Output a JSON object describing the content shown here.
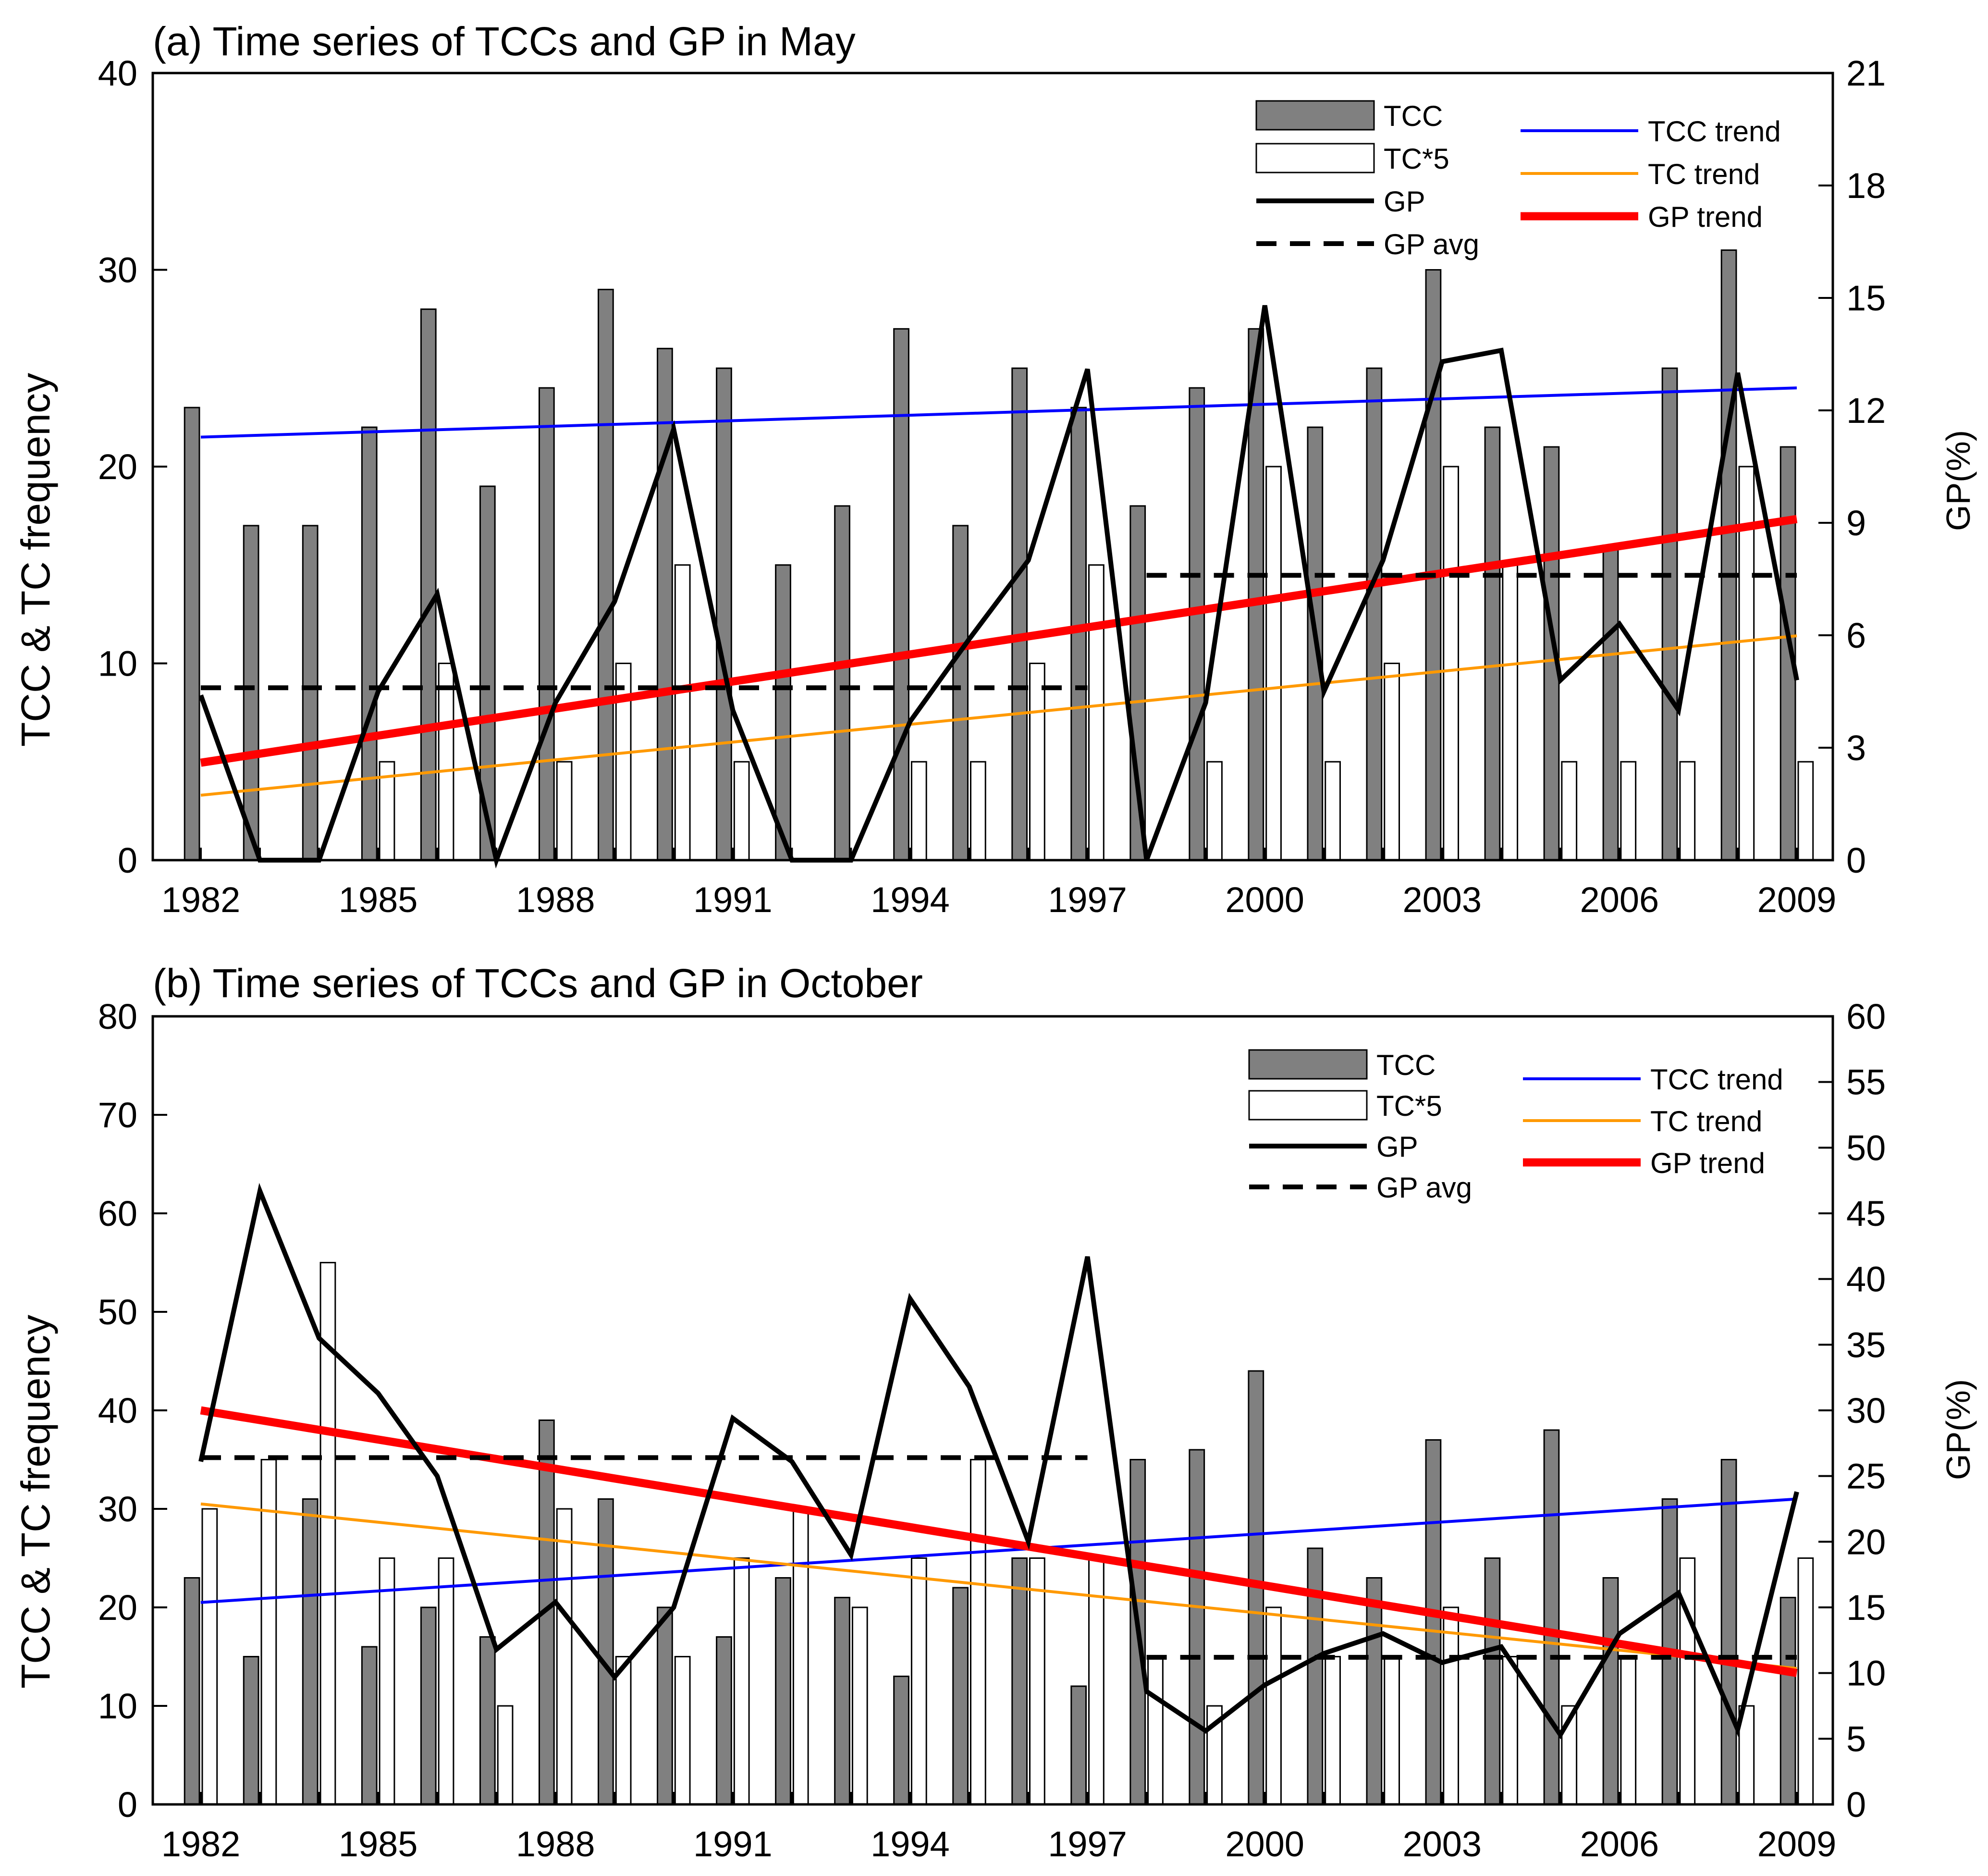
{
  "chart_data": [
    {
      "type": "bar",
      "title": "(a) Time series of TCCs and GP in May",
      "ylabel": "TCC & TC frequency",
      "y2label": "GP(%)",
      "xlabel": "",
      "ylim": [
        0,
        40
      ],
      "y2lim": [
        0,
        21
      ],
      "yticks": [
        0,
        10,
        20,
        30,
        40
      ],
      "y2ticks": [
        0,
        3,
        6,
        9,
        12,
        15,
        18,
        21
      ],
      "xtick_labels": [
        "1982",
        "1985",
        "1988",
        "1991",
        "1994",
        "1997",
        "2000",
        "2003",
        "2006",
        "2009"
      ],
      "categories": [
        "1982",
        "1983",
        "1984",
        "1985",
        "1986",
        "1987",
        "1988",
        "1989",
        "1990",
        "1991",
        "1992",
        "1993",
        "1994",
        "1995",
        "1996",
        "1997",
        "1998",
        "1999",
        "2000",
        "2001",
        "2002",
        "2003",
        "2004",
        "2005",
        "2006",
        "2007",
        "2008",
        "2009"
      ],
      "legend_placement": "top-right",
      "series": [
        {
          "name": "TCC",
          "kind": "bar",
          "axis": "left",
          "color": "#808080",
          "values": [
            23,
            17,
            17,
            22,
            28,
            19,
            24,
            29,
            26,
            25,
            15,
            18,
            27,
            17,
            25,
            23,
            18,
            24,
            27,
            22,
            25,
            30,
            22,
            21,
            16,
            25,
            31,
            21
          ]
        },
        {
          "name": "TC*5",
          "kind": "bar",
          "axis": "left",
          "color": "#ffffff",
          "values": [
            0,
            0,
            0,
            5,
            10,
            0,
            5,
            10,
            15,
            5,
            0,
            0,
            5,
            5,
            10,
            15,
            0,
            5,
            20,
            5,
            10,
            20,
            15,
            5,
            5,
            5,
            20,
            5
          ]
        },
        {
          "name": "GP",
          "kind": "line",
          "axis": "right",
          "color": "#000000",
          "dash": "solid",
          "values": [
            4.4,
            0,
            0,
            4.5,
            7.1,
            0,
            4.2,
            6.9,
            11.5,
            4.0,
            0,
            0,
            3.7,
            5.9,
            8.0,
            13.1,
            0,
            4.2,
            14.8,
            4.5,
            8.0,
            13.3,
            13.6,
            4.8,
            6.3,
            4.0,
            13.0,
            4.8
          ]
        },
        {
          "name": "GP avg",
          "kind": "segments",
          "axis": "right",
          "color": "#000000",
          "dash": "dashed",
          "segments": [
            {
              "x": [
                1982,
                1997
              ],
              "y": [
                4.6,
                4.6
              ]
            },
            {
              "x": [
                1998,
                2009
              ],
              "y": [
                7.6,
                7.6
              ]
            }
          ]
        },
        {
          "name": "TCC trend",
          "kind": "trend",
          "axis": "left",
          "color": "#0000ff",
          "x": [
            1982,
            2009
          ],
          "y": [
            21.5,
            24.0
          ]
        },
        {
          "name": "TC trend",
          "kind": "trend",
          "axis": "left",
          "color": "#ff9900",
          "x": [
            1982,
            2009
          ],
          "y": [
            3.3,
            11.4
          ]
        },
        {
          "name": "GP trend",
          "kind": "trend",
          "axis": "right",
          "color": "#ff0000",
          "x": [
            1982,
            2009
          ],
          "y": [
            2.6,
            9.1
          ]
        }
      ]
    },
    {
      "type": "bar",
      "title": "(b) Time series of TCCs and GP in October",
      "ylabel": "TCC & TC frequency",
      "y2label": "GP(%)",
      "xlabel": "",
      "ylim": [
        0,
        80
      ],
      "y2lim": [
        0,
        60
      ],
      "yticks": [
        0,
        10,
        20,
        30,
        40,
        50,
        60,
        70,
        80
      ],
      "y2ticks": [
        0,
        5,
        10,
        15,
        20,
        25,
        30,
        35,
        40,
        45,
        50,
        55,
        60
      ],
      "xtick_labels": [
        "1982",
        "1985",
        "1988",
        "1991",
        "1994",
        "1997",
        "2000",
        "2003",
        "2006",
        "2009"
      ],
      "categories": [
        "1982",
        "1983",
        "1984",
        "1985",
        "1986",
        "1987",
        "1988",
        "1989",
        "1990",
        "1991",
        "1992",
        "1993",
        "1994",
        "1995",
        "1996",
        "1997",
        "1998",
        "1999",
        "2000",
        "2001",
        "2002",
        "2003",
        "2004",
        "2005",
        "2006",
        "2007",
        "2008",
        "2009"
      ],
      "legend_placement": "top-right",
      "series": [
        {
          "name": "TCC",
          "kind": "bar",
          "axis": "left",
          "color": "#808080",
          "values": [
            23,
            15,
            31,
            16,
            20,
            17,
            39,
            31,
            20,
            17,
            23,
            21,
            13,
            22,
            25,
            12,
            35,
            36,
            44,
            26,
            23,
            37,
            25,
            38,
            23,
            31,
            35,
            21
          ]
        },
        {
          "name": "TC*5",
          "kind": "bar",
          "axis": "left",
          "color": "#ffffff",
          "values": [
            30,
            35,
            55,
            25,
            25,
            10,
            30,
            15,
            15,
            25,
            30,
            20,
            25,
            35,
            25,
            25,
            15,
            10,
            20,
            15,
            15,
            20,
            15,
            10,
            15,
            25,
            10,
            25
          ]
        },
        {
          "name": "GP",
          "kind": "line",
          "axis": "right",
          "color": "#000000",
          "dash": "solid",
          "values": [
            26.1,
            46.7,
            35.5,
            31.3,
            25.0,
            11.8,
            15.4,
            9.7,
            15.0,
            29.4,
            26.1,
            19.0,
            38.5,
            31.8,
            20.0,
            41.7,
            8.6,
            5.6,
            9.1,
            11.5,
            13.0,
            10.8,
            12.0,
            5.3,
            13.0,
            16.1,
            5.7,
            23.8
          ]
        },
        {
          "name": "GP avg",
          "kind": "segments",
          "axis": "right",
          "color": "#000000",
          "dash": "dashed",
          "segments": [
            {
              "x": [
                1982,
                1997
              ],
              "y": [
                26.4,
                26.4
              ]
            },
            {
              "x": [
                1998,
                2009
              ],
              "y": [
                11.2,
                11.2
              ]
            }
          ]
        },
        {
          "name": "TCC trend",
          "kind": "trend",
          "axis": "left",
          "color": "#0000ff",
          "x": [
            1982,
            2009
          ],
          "y": [
            20.5,
            31.0
          ]
        },
        {
          "name": "TC trend",
          "kind": "trend",
          "axis": "left",
          "color": "#ff9900",
          "x": [
            1982,
            2009
          ],
          "y": [
            30.5,
            13.8
          ]
        },
        {
          "name": "GP trend",
          "kind": "trend",
          "axis": "right",
          "color": "#ff0000",
          "x": [
            1982,
            2009
          ],
          "y": [
            30.0,
            10.0
          ]
        }
      ]
    }
  ]
}
